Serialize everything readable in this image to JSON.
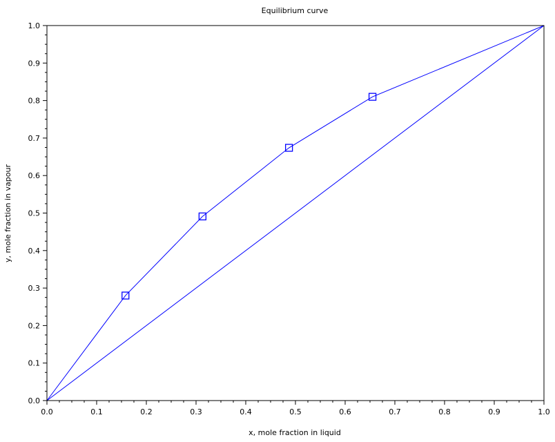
{
  "chart_data": {
    "type": "line",
    "title": "Equilibrium curve",
    "xlabel": "x, mole fraction in liquid",
    "ylabel": "y, mole fraction in vapour",
    "xlim": [
      0.0,
      1.0
    ],
    "ylim": [
      0.0,
      1.0
    ],
    "xticks": [
      "0.0",
      "0.1",
      "0.2",
      "0.3",
      "0.4",
      "0.5",
      "0.6",
      "0.7",
      "0.8",
      "0.9",
      "1.0"
    ],
    "yticks": [
      "0.0",
      "0.1",
      "0.2",
      "0.3",
      "0.4",
      "0.5",
      "0.6",
      "0.7",
      "0.8",
      "0.9",
      "1.0"
    ],
    "grid": false,
    "series": [
      {
        "x": [
          0.0,
          0.158,
          0.313,
          0.487,
          0.655,
          1.0
        ],
        "y": [
          0.0,
          0.28,
          0.491,
          0.674,
          0.81,
          1.0
        ],
        "markers": [
          false,
          true,
          true,
          true,
          true,
          false
        ],
        "marker": "square",
        "color": "#0000ff"
      },
      {
        "x": [
          0.0,
          1.0
        ],
        "y": [
          0.0,
          1.0
        ],
        "color": "#0000ff"
      }
    ]
  }
}
